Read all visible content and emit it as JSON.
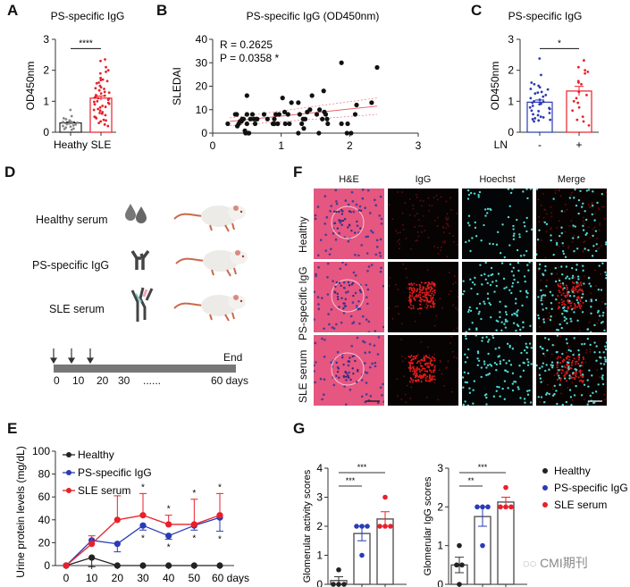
{
  "panels": {
    "A": {
      "letter": "A"
    },
    "B": {
      "letter": "B"
    },
    "C": {
      "letter": "C"
    },
    "D": {
      "letter": "D"
    },
    "E": {
      "letter": "E"
    },
    "F": {
      "letter": "F"
    },
    "G": {
      "letter": "G"
    }
  },
  "colors": {
    "healthy": "#222222",
    "ps_igg": "#2a3bb5",
    "sle": "#e8202a",
    "regression": "#e8606a",
    "bar_gray": "#555555",
    "timeline": "#777777"
  },
  "chart_data": [
    {
      "id": "A",
      "type": "bar",
      "title": "PS-specific IgG",
      "ylabel": "OD450nm",
      "xlabel": "",
      "categories": [
        "Heathy",
        "SLE"
      ],
      "values": [
        0.3,
        1.1
      ],
      "errors": [
        0.03,
        0.07
      ],
      "ylim": [
        0,
        3
      ],
      "yticks": [
        "0",
        "1",
        "2",
        "3"
      ],
      "significance": [
        {
          "from": 0,
          "to": 1,
          "label": "****"
        }
      ],
      "points": {
        "Heathy": [
          0.72,
          0.52,
          0.45,
          0.42,
          0.38,
          0.35,
          0.33,
          0.31,
          0.3,
          0.28,
          0.26,
          0.25,
          0.22,
          0.2,
          0.18,
          0.15,
          0.12,
          0.1,
          0.08
        ],
        "SLE": [
          2.35,
          2.3,
          2.1,
          2.0,
          1.95,
          1.9,
          1.75,
          1.7,
          1.68,
          1.65,
          1.6,
          1.58,
          1.5,
          1.45,
          1.42,
          1.4,
          1.35,
          1.3,
          1.28,
          1.25,
          1.2,
          1.18,
          1.15,
          1.12,
          1.1,
          1.08,
          1.05,
          1.0,
          0.98,
          0.95,
          0.92,
          0.9,
          0.85,
          0.82,
          0.8,
          0.75,
          0.72,
          0.7,
          0.65,
          0.62,
          0.6,
          0.55,
          0.5,
          0.48,
          0.45,
          0.4,
          0.38,
          0.35,
          0.3,
          0.25,
          0.2
        ]
      }
    },
    {
      "id": "B",
      "type": "scatter",
      "title": "PS-specific IgG (OD450nm)",
      "ylabel": "SLEDAI",
      "xlabel": "",
      "xlim": [
        0,
        3
      ],
      "ylim": [
        0,
        40
      ],
      "xticks": [
        "0",
        "1",
        "2",
        "3"
      ],
      "yticks": [
        "0",
        "10",
        "20",
        "30",
        "40"
      ],
      "annotations": [
        "R = 0.2625",
        "P = 0.0358 *"
      ],
      "regression": {
        "x0": 0.25,
        "y0": 5.0,
        "x1": 2.4,
        "y1": 11.5
      },
      "points": [
        [
          0.22,
          4
        ],
        [
          0.33,
          8
        ],
        [
          0.35,
          8
        ],
        [
          0.36,
          3
        ],
        [
          0.38,
          4
        ],
        [
          0.4,
          5
        ],
        [
          0.42,
          5
        ],
        [
          0.43,
          6
        ],
        [
          0.45,
          6
        ],
        [
          0.47,
          1
        ],
        [
          0.48,
          0
        ],
        [
          0.5,
          4
        ],
        [
          0.5,
          8
        ],
        [
          0.5,
          16
        ],
        [
          0.52,
          0
        ],
        [
          0.53,
          0
        ],
        [
          0.55,
          6
        ],
        [
          0.58,
          8
        ],
        [
          0.6,
          6
        ],
        [
          0.62,
          4
        ],
        [
          0.63,
          6
        ],
        [
          0.65,
          6
        ],
        [
          0.75,
          8
        ],
        [
          0.8,
          6
        ],
        [
          0.88,
          4
        ],
        [
          0.9,
          4
        ],
        [
          0.9,
          6
        ],
        [
          0.92,
          8
        ],
        [
          0.95,
          4
        ],
        [
          0.97,
          8
        ],
        [
          1.02,
          15
        ],
        [
          1.05,
          9
        ],
        [
          1.06,
          4
        ],
        [
          1.1,
          8
        ],
        [
          1.12,
          4
        ],
        [
          1.15,
          13
        ],
        [
          1.25,
          13
        ],
        [
          1.25,
          0
        ],
        [
          1.27,
          8
        ],
        [
          1.3,
          4
        ],
        [
          1.32,
          6
        ],
        [
          1.33,
          2
        ],
        [
          1.35,
          6
        ],
        [
          1.38,
          9
        ],
        [
          1.42,
          10
        ],
        [
          1.45,
          16
        ],
        [
          1.52,
          8
        ],
        [
          1.55,
          0
        ],
        [
          1.56,
          10
        ],
        [
          1.62,
          18
        ],
        [
          1.63,
          9
        ],
        [
          1.6,
          6
        ],
        [
          1.65,
          8
        ],
        [
          1.67,
          6
        ],
        [
          1.68,
          4
        ],
        [
          1.88,
          30
        ],
        [
          1.88,
          4
        ],
        [
          1.97,
          4
        ],
        [
          1.96,
          0
        ],
        [
          2.02,
          0
        ],
        [
          2.08,
          8
        ],
        [
          2.1,
          12
        ],
        [
          2.32,
          13
        ],
        [
          2.4,
          28
        ]
      ]
    },
    {
      "id": "C",
      "type": "bar",
      "title": "PS-specific IgG",
      "ylabel": "OD450nm",
      "xlabel": "LN",
      "categories": [
        "-",
        "+"
      ],
      "values": [
        0.97,
        1.33
      ],
      "errors": [
        0.07,
        0.15
      ],
      "ylim": [
        0,
        3
      ],
      "yticks": [
        "0",
        "1",
        "2",
        "3"
      ],
      "significance": [
        {
          "from": 0,
          "to": 1,
          "label": "*"
        }
      ],
      "points": {
        "-": [
          2.38,
          1.85,
          1.6,
          1.55,
          1.5,
          1.45,
          1.4,
          1.38,
          1.3,
          1.28,
          1.25,
          1.2,
          1.15,
          1.1,
          1.05,
          1.0,
          0.98,
          0.95,
          0.92,
          0.9,
          0.85,
          0.8,
          0.78,
          0.75,
          0.7,
          0.68,
          0.62,
          0.58,
          0.55,
          0.5,
          0.48,
          0.45,
          0.42,
          0.4,
          0.38,
          0.35
        ],
        "+": [
          2.32,
          2.1,
          2.0,
          1.95,
          1.9,
          1.65,
          1.6,
          1.55,
          1.3,
          1.2,
          1.1,
          1.0,
          0.95,
          0.8,
          0.7,
          0.5,
          0.4,
          0.35,
          0.22
        ]
      }
    },
    {
      "id": "E",
      "type": "line",
      "title": "",
      "ylabel": "Urine protein levels (mg/dL)",
      "xlabel": "",
      "x": [
        0,
        10,
        20,
        30,
        40,
        50,
        60
      ],
      "xticks": [
        "0",
        "10",
        "20",
        "30",
        "40",
        "50",
        "60 days"
      ],
      "ylim": [
        0,
        100
      ],
      "yticks": [
        "0",
        "20",
        "40",
        "60",
        "80",
        "100"
      ],
      "legend_position": "top-left",
      "series": [
        {
          "name": "Healthy",
          "values": [
            0,
            7,
            0,
            0,
            0,
            0,
            0
          ],
          "errors_up": [
            0,
            0,
            0,
            0,
            0,
            0,
            0
          ],
          "errors_down": [
            0,
            8,
            0,
            0,
            0,
            0,
            0
          ]
        },
        {
          "name": "PS-specific IgG",
          "values": [
            0,
            22,
            19,
            35,
            26,
            35,
            42
          ],
          "errors_up": [
            0,
            0,
            0,
            0,
            0,
            0,
            0
          ],
          "errors_down": [
            0,
            0,
            7,
            4,
            3,
            4,
            12
          ],
          "stars_below": [
            false,
            false,
            false,
            true,
            true,
            true,
            true
          ]
        },
        {
          "name": "SLE serum",
          "values": [
            0,
            19,
            40,
            44,
            36,
            36,
            44
          ],
          "errors_up": [
            0,
            7,
            21,
            19,
            8,
            22,
            19
          ],
          "errors_down": [
            0,
            0,
            0,
            0,
            0,
            0,
            0
          ],
          "stars_above": [
            false,
            false,
            false,
            true,
            true,
            true,
            true
          ]
        }
      ]
    },
    {
      "id": "G1",
      "type": "bar",
      "ylabel": "Glomerular activity scores",
      "categories": [
        "Healthy",
        "PS-specific IgG",
        "SLE serum"
      ],
      "values": [
        0.13,
        1.75,
        2.25
      ],
      "errors": [
        0.13,
        0.25,
        0.25
      ],
      "ylim": [
        0,
        4
      ],
      "yticks": [
        "0",
        "1",
        "2",
        "3",
        "4"
      ],
      "points": [
        [
          0,
          0,
          0,
          0.5
        ],
        [
          2,
          2,
          2,
          1
        ],
        [
          2,
          2,
          2,
          3
        ]
      ],
      "significance": [
        {
          "from": 0,
          "to": 1,
          "label": "***"
        },
        {
          "from": 0,
          "to": 2,
          "label": "***"
        }
      ]
    },
    {
      "id": "G2",
      "type": "bar",
      "ylabel": "Glomerular IgG scores",
      "categories": [
        "Healthy",
        "PS-specific IgG",
        "SLE serum"
      ],
      "values": [
        0.5,
        1.75,
        2.125
      ],
      "errors": [
        0.2,
        0.25,
        0.125
      ],
      "ylim": [
        0,
        3
      ],
      "yticks": [
        "0",
        "1",
        "2",
        "3"
      ],
      "points": [
        [
          0.5,
          0.5,
          1,
          0
        ],
        [
          2,
          2,
          2,
          1
        ],
        [
          2,
          2,
          2,
          2.5
        ]
      ],
      "significance": [
        {
          "from": 0,
          "to": 1,
          "label": "**"
        },
        {
          "from": 0,
          "to": 2,
          "label": "***"
        }
      ],
      "legend": [
        "Healthy",
        "PS-specific IgG",
        "SLE serum"
      ]
    }
  ],
  "panelD": {
    "groups": [
      {
        "label": "Healthy serum",
        "icon": "serum-drops-icon"
      },
      {
        "label": "PS-specific IgG",
        "icon": "antibody-icon"
      },
      {
        "label": "SLE serum",
        "icon": "mixed-antibodies-icon"
      }
    ],
    "timeline": {
      "end_label": "End",
      "ticks": [
        "0",
        "10",
        "20",
        "30",
        "......",
        "60 days"
      ],
      "injection_days": [
        0,
        7,
        14
      ]
    }
  },
  "panelF": {
    "columns": [
      "H&E",
      "IgG",
      "Hoechst",
      "Merge"
    ],
    "rows": [
      "Healthy",
      "PS-specific IgG",
      "SLE serum"
    ]
  },
  "watermark": {
    "text": "CMI期刊"
  }
}
